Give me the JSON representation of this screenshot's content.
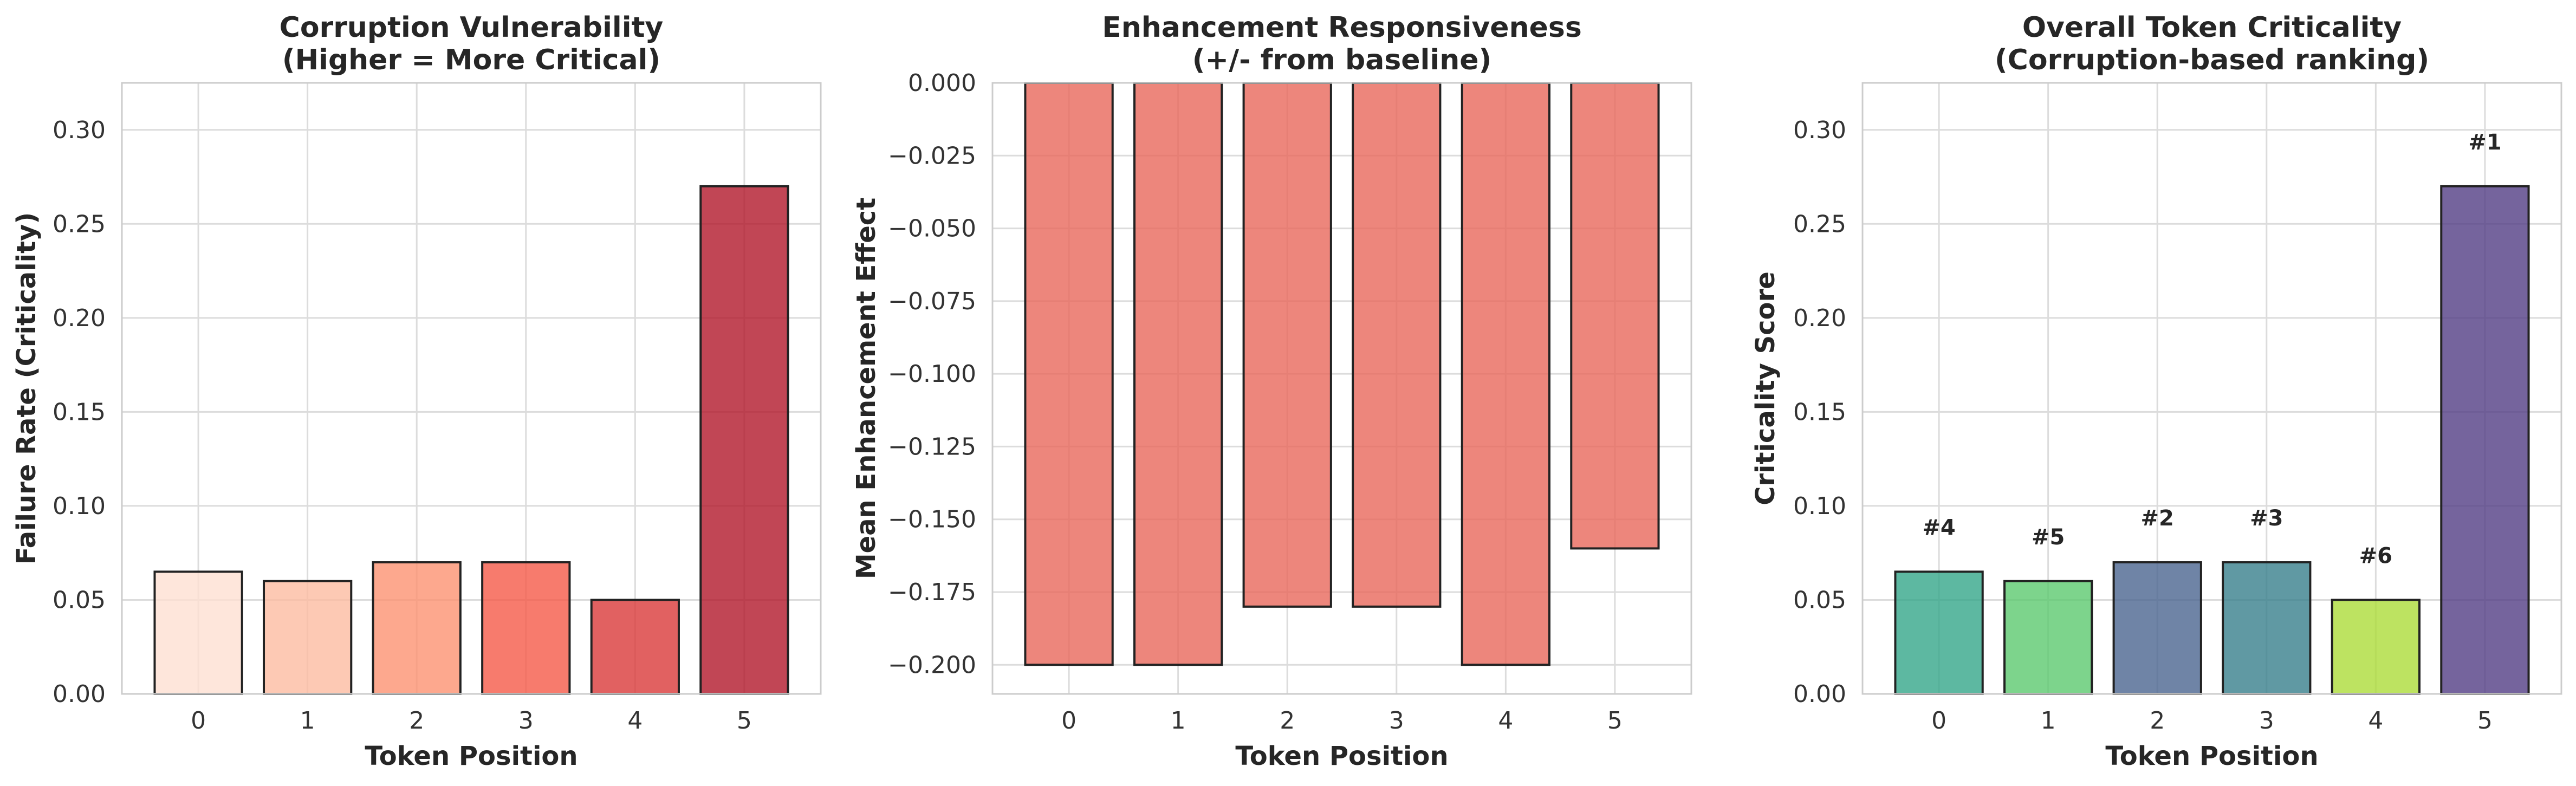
{
  "chart_data": [
    {
      "type": "bar",
      "title": "Corruption Vulnerability\n(Higher = More Critical)",
      "xlabel": "Token Position",
      "ylabel": "Failure Rate (Criticality)",
      "categories": [
        "0",
        "1",
        "2",
        "3",
        "4",
        "5"
      ],
      "values": [
        0.065,
        0.06,
        0.07,
        0.07,
        0.05,
        0.27
      ],
      "colors": [
        "#fee0d2",
        "#fcbba1",
        "#fc9272",
        "#f55a48",
        "#d93a3a",
        "#b2182b"
      ],
      "bar_alpha": 0.8,
      "ylim": [
        0,
        0.325
      ],
      "yticks": [
        "0.00",
        "0.05",
        "0.10",
        "0.15",
        "0.20",
        "0.25",
        "0.30"
      ],
      "ytick_values": [
        0,
        0.05,
        0.1,
        0.15,
        0.2,
        0.25,
        0.3
      ],
      "grid": true
    },
    {
      "type": "bar",
      "title": "Enhancement Responsiveness\n(+/- from baseline)",
      "xlabel": "Token Position",
      "ylabel": "Mean Enhancement Effect",
      "categories": [
        "0",
        "1",
        "2",
        "3",
        "4",
        "5"
      ],
      "values": [
        -0.2,
        -0.2,
        -0.18,
        -0.18,
        -0.2,
        -0.16
      ],
      "colors": [
        "#e8685b",
        "#e8685b",
        "#e8685b",
        "#e8685b",
        "#e8685b",
        "#e8685b"
      ],
      "bar_alpha": 0.8,
      "ylim": [
        -0.21,
        0.0
      ],
      "yticks": [
        "−0.200",
        "−0.175",
        "−0.150",
        "−0.125",
        "−0.100",
        "−0.075",
        "−0.050",
        "−0.025",
        "0.000"
      ],
      "ytick_values": [
        -0.2,
        -0.175,
        -0.15,
        -0.125,
        -0.1,
        -0.075,
        -0.05,
        -0.025,
        0.0
      ],
      "grid": true
    },
    {
      "type": "bar",
      "title": "Overall Token Criticality\n(Corruption-based ranking)",
      "xlabel": "Token Position",
      "ylabel": "Criticality Score",
      "categories": [
        "0",
        "1",
        "2",
        "3",
        "4",
        "5"
      ],
      "values": [
        0.065,
        0.06,
        0.07,
        0.07,
        0.05,
        0.27
      ],
      "colors": [
        "#35a68a",
        "#5cc96f",
        "#4b6590",
        "#387f8c",
        "#acdc3a",
        "#533d85"
      ],
      "bar_alpha": 0.8,
      "annotations": [
        "#4",
        "#5",
        "#2",
        "#3",
        "#6",
        "#1"
      ],
      "ylim": [
        0,
        0.325
      ],
      "yticks": [
        "0.00",
        "0.05",
        "0.10",
        "0.15",
        "0.20",
        "0.25",
        "0.30"
      ],
      "ytick_values": [
        0,
        0.05,
        0.1,
        0.15,
        0.2,
        0.25,
        0.3
      ],
      "grid": true
    }
  ]
}
